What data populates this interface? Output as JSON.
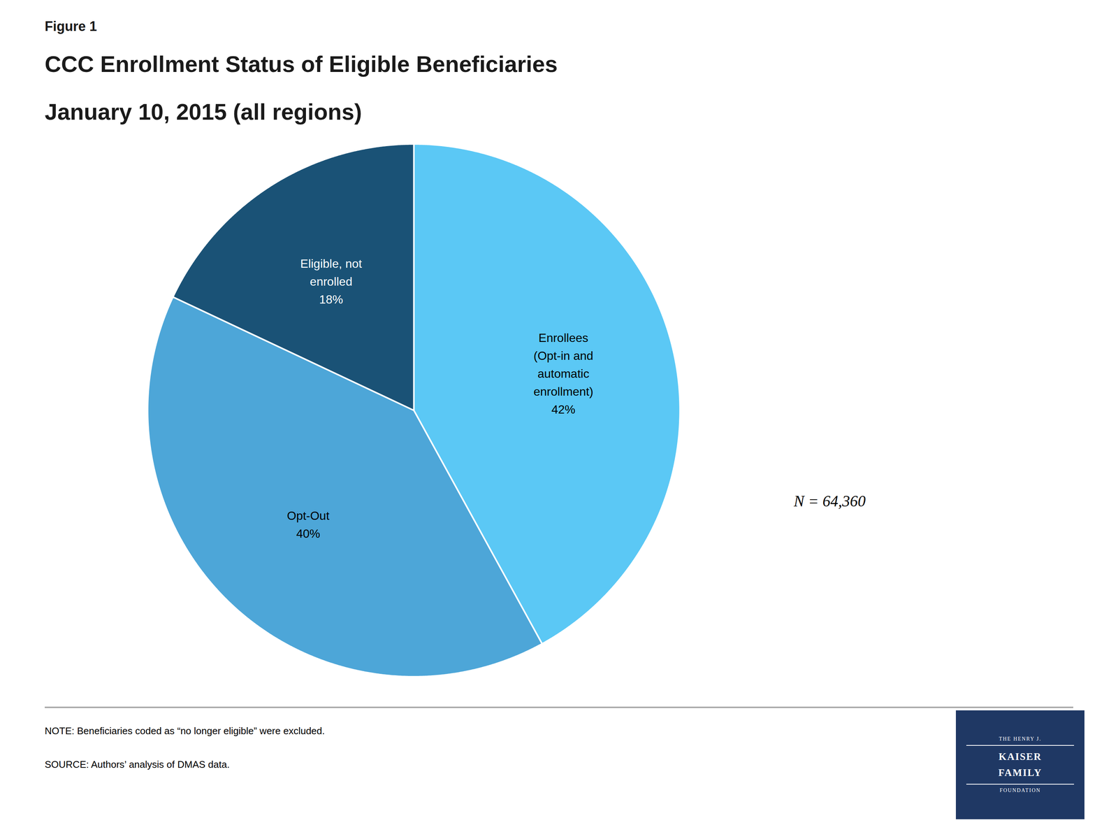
{
  "chart_data": {
    "type": "pie",
    "title": "CCC Enrollment Status of Eligible Beneficiaries",
    "subtitle": "January 10, 2015 (all regions)",
    "annotations": [
      "Figure 1",
      "N = 64,360"
    ],
    "notes": [
      "NOTE: Beneficiaries coded as “no longer eligible” were excluded.",
      "SOURCE: Authors’ analysis of DMAS data."
    ],
    "categories": [
      "Enrollees\n(Opt-in and\nautomatic\nenrollment)",
      "Opt-Out",
      "Eligible, not\nenrolled"
    ],
    "values": [
      42,
      40,
      18
    ],
    "value_labels": [
      "42%",
      "40%",
      "18%"
    ],
    "colors": [
      "#5BC8F5",
      "#4DA6D8",
      "#1A5276"
    ],
    "data_labels": true,
    "legend": false,
    "logo": {
      "lines": [
        "THE HENRY J.",
        "KAISER",
        "FAMILY",
        "FOUNDATION"
      ],
      "color": "#1F3864"
    }
  }
}
